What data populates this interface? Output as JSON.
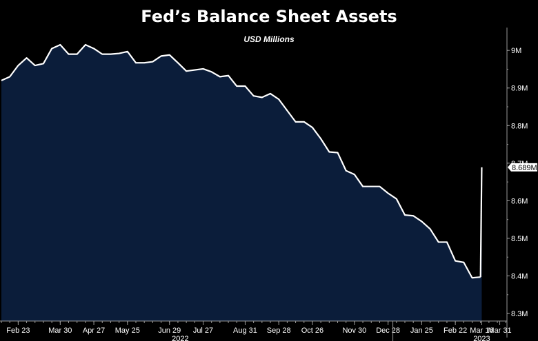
{
  "chart_data": {
    "type": "area",
    "title": "Fed’s Balance Sheet Assets",
    "subtitle": "USD Millions",
    "xlabel": "",
    "ylabel": "",
    "ylim": [
      8.28,
      9.07
    ],
    "y_ticks": [
      {
        "value": 9.0,
        "label": "9M"
      },
      {
        "value": 8.9,
        "label": "8.9M"
      },
      {
        "value": 8.8,
        "label": "8.8M"
      },
      {
        "value": 8.7,
        "label": "8.7M"
      },
      {
        "value": 8.6,
        "label": "8.6M"
      },
      {
        "value": 8.5,
        "label": "8.5M"
      },
      {
        "value": 8.4,
        "label": "8.4M"
      },
      {
        "value": 8.3,
        "label": "8.3M"
      }
    ],
    "x_ticks": [
      {
        "date": "2022-02-23",
        "label": "Feb 23"
      },
      {
        "date": "2022-03-30",
        "label": "Mar 30"
      },
      {
        "date": "2022-04-27",
        "label": "Apr 27"
      },
      {
        "date": "2022-05-25",
        "label": "May 25"
      },
      {
        "date": "2022-06-29",
        "label": "Jun 29"
      },
      {
        "date": "2022-07-27",
        "label": "Jul 27"
      },
      {
        "date": "2022-08-31",
        "label": "Aug 31"
      },
      {
        "date": "2022-09-28",
        "label": "Sep 28"
      },
      {
        "date": "2022-10-26",
        "label": "Oct 26"
      },
      {
        "date": "2022-11-30",
        "label": "Nov 30"
      },
      {
        "date": "2022-12-28",
        "label": "Dec 28"
      },
      {
        "date": "2023-01-25",
        "label": "Jan 25"
      },
      {
        "date": "2023-02-22",
        "label": "Feb 22"
      },
      {
        "date": "2023-03-16",
        "label": "Mar 16"
      },
      {
        "date": "2023-03-31",
        "label": "Mar 31"
      }
    ],
    "year_labels": [
      {
        "date": "2022-07-08",
        "label": "2022"
      },
      {
        "date": "2023-03-16",
        "label": "2023"
      }
    ],
    "last_value_label": "8.689M",
    "grid": false,
    "colors": {
      "line": "#ffffff",
      "fill": "#0b1d3a",
      "background": "#000000",
      "axis": "#9a9a9a"
    },
    "series": [
      {
        "name": "",
        "x": [
          "2022-02-09",
          "2022-02-16",
          "2022-02-23",
          "2022-03-02",
          "2022-03-09",
          "2022-03-16",
          "2022-03-23",
          "2022-03-30",
          "2022-04-06",
          "2022-04-13",
          "2022-04-20",
          "2022-04-27",
          "2022-05-04",
          "2022-05-11",
          "2022-05-18",
          "2022-05-25",
          "2022-06-01",
          "2022-06-08",
          "2022-06-15",
          "2022-06-22",
          "2022-06-29",
          "2022-07-06",
          "2022-07-13",
          "2022-07-20",
          "2022-07-27",
          "2022-08-03",
          "2022-08-10",
          "2022-08-17",
          "2022-08-24",
          "2022-08-31",
          "2022-09-07",
          "2022-09-14",
          "2022-09-21",
          "2022-09-28",
          "2022-10-05",
          "2022-10-12",
          "2022-10-19",
          "2022-10-26",
          "2022-11-02",
          "2022-11-09",
          "2022-11-16",
          "2022-11-23",
          "2022-11-30",
          "2022-12-07",
          "2022-12-14",
          "2022-12-21",
          "2022-12-28",
          "2023-01-04",
          "2023-01-11",
          "2023-01-18",
          "2023-01-25",
          "2023-02-01",
          "2023-02-08",
          "2023-02-15",
          "2023-02-22",
          "2023-03-01",
          "2023-03-08",
          "2023-03-15"
        ],
        "values": [
          8.92,
          8.93,
          8.96,
          8.98,
          8.96,
          8.965,
          9.005,
          9.015,
          8.99,
          8.99,
          9.015,
          9.005,
          8.99,
          8.99,
          8.992,
          8.997,
          8.967,
          8.967,
          8.97,
          8.985,
          8.988,
          8.967,
          8.945,
          8.948,
          8.951,
          8.943,
          8.93,
          8.933,
          8.905,
          8.905,
          8.879,
          8.875,
          8.885,
          8.87,
          8.84,
          8.81,
          8.81,
          8.795,
          8.765,
          8.73,
          8.728,
          8.68,
          8.67,
          8.638,
          8.638,
          8.638,
          8.62,
          8.605,
          8.562,
          8.56,
          8.545,
          8.525,
          8.49,
          8.49,
          8.44,
          8.436,
          8.395,
          8.397
        ]
      },
      {
        "name": "",
        "x": [
          "2023-03-15",
          "2023-03-16"
        ],
        "values": [
          8.397,
          8.689
        ]
      }
    ]
  }
}
